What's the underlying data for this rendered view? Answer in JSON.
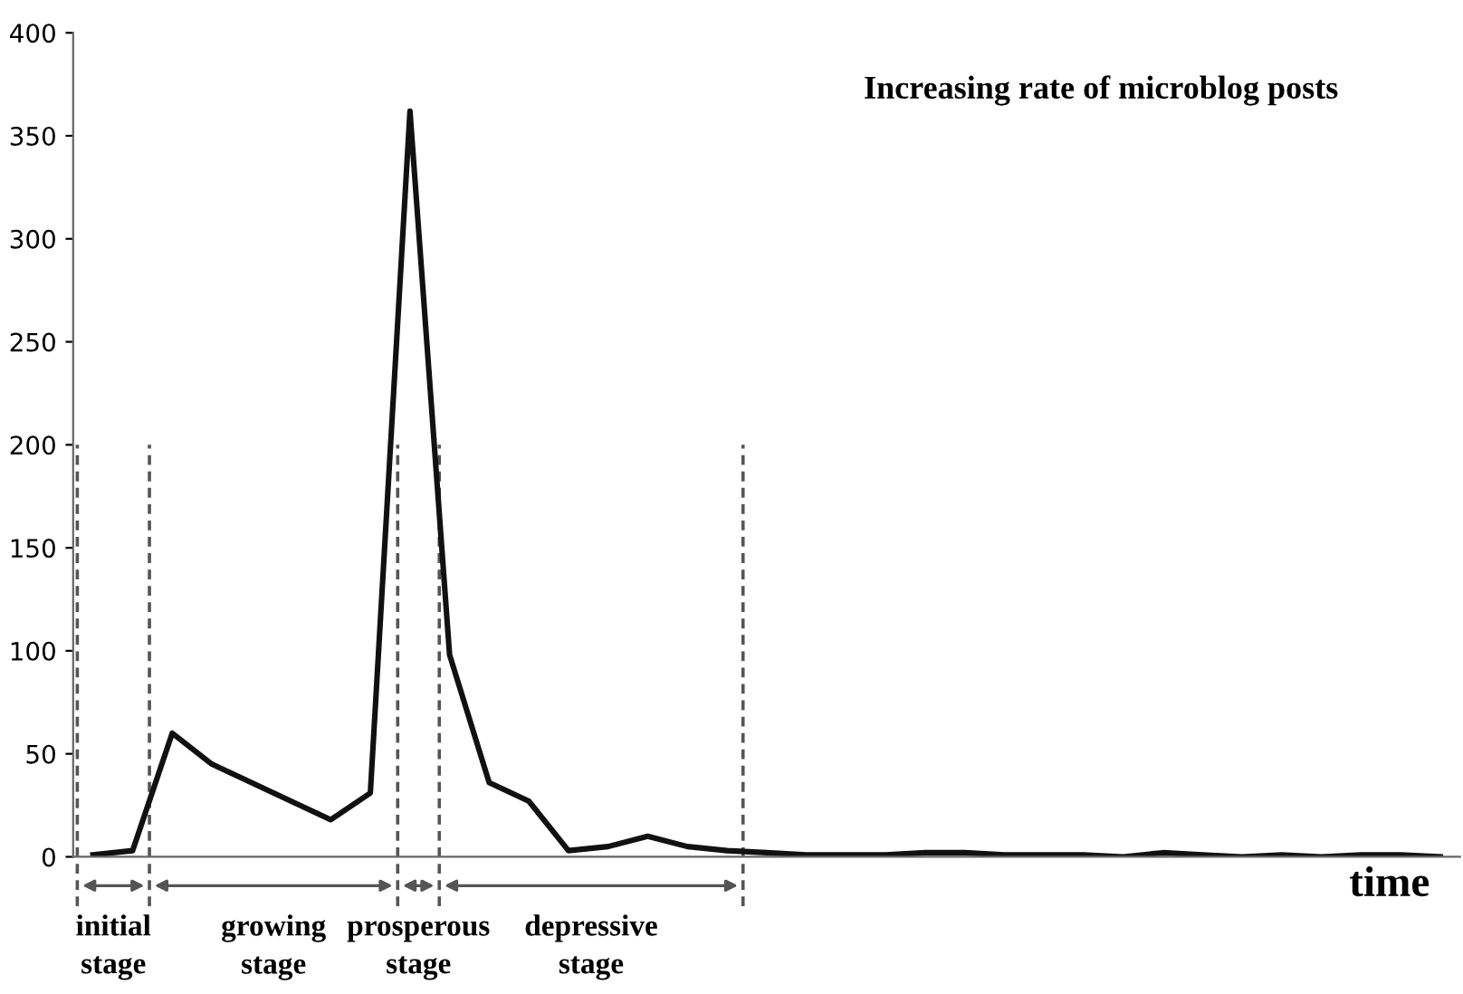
{
  "chart_data": {
    "type": "line",
    "title": "Increasing rate of microblog posts",
    "xlabel": "time",
    "categories": [
      null,
      null,
      null,
      null,
      null,
      null,
      null,
      null,
      null,
      null,
      null,
      null,
      null,
      null,
      null,
      null,
      null,
      null,
      null,
      null,
      null,
      null,
      null,
      null,
      null,
      null,
      null,
      null,
      null,
      null,
      null,
      null,
      null,
      null,
      null
    ],
    "series": [
      {
        "color": "#111111",
        "values": [
          1,
          3,
          60,
          45,
          36,
          27,
          18,
          31,
          362,
          98,
          36,
          27,
          3,
          5,
          10,
          5,
          3,
          2,
          1,
          1,
          1,
          2,
          2,
          1,
          1,
          1,
          0,
          2,
          1,
          0,
          1,
          0,
          1,
          1,
          0
        ]
      }
    ],
    "ylim": [
      0,
      400
    ],
    "yticks": [
      0,
      50,
      100,
      150,
      200,
      250,
      300,
      350,
      400
    ],
    "grid": false,
    "legend": false,
    "marker": "none",
    "line_style": "solid",
    "annotations": [
      "initial\nstage",
      "growing\nstage",
      "prosperous\nstage",
      "depressive\nstage"
    ]
  }
}
